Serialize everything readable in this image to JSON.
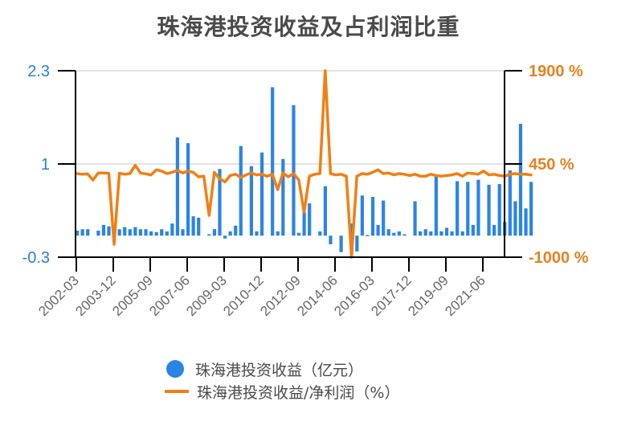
{
  "chart_data": {
    "type": "bar+line",
    "title": "珠海港投资收益及占利润比重",
    "xlabel": "",
    "ylabel_left": "",
    "ylabel_right": "",
    "left_axis": {
      "ticks": [
        "2.3",
        "1",
        "-0.3"
      ],
      "range": [
        -0.3,
        2.3
      ],
      "color": "#2a7fd9"
    },
    "right_axis": {
      "ticks": [
        "1900 %",
        "450 %",
        "-1000 %"
      ],
      "range": [
        -1000,
        1900
      ],
      "color": "#e9801f"
    },
    "x_tick_labels": [
      "2002-03",
      "2003-12",
      "2005-09",
      "2007-06",
      "2009-03",
      "2010-12",
      "2012-09",
      "2014-06",
      "2016-03",
      "2017-12",
      "2019-09",
      "2021-06"
    ],
    "grid": true,
    "legend_position": "bottom",
    "series": [
      {
        "name": "珠海港投资收益（亿元）",
        "type": "bar",
        "axis": "left",
        "color": "#2b84e4",
        "values": [
          0.07,
          0.09,
          0.09,
          0.0,
          0.07,
          0.15,
          0.13,
          0.0,
          0.09,
          0.12,
          0.09,
          0.12,
          0.09,
          0.09,
          0.06,
          0.05,
          0.09,
          0.06,
          0.17,
          1.37,
          0.09,
          1.29,
          0.27,
          0.25,
          0.0,
          0.02,
          0.09,
          0.93,
          -0.04,
          0.06,
          0.14,
          1.25,
          0.0,
          0.97,
          0.06,
          1.16,
          0.0,
          2.07,
          0.06,
          1.07,
          0.0,
          1.82,
          0.04,
          0.33,
          0.45,
          0.0,
          0.06,
          0.69,
          -0.12,
          0.0,
          -0.23,
          0.0,
          0.17,
          -0.22,
          0.56,
          0.01,
          0.54,
          0.15,
          0.49,
          0.09,
          0.04,
          0.06,
          0.02,
          0.0,
          0.48,
          0.06,
          0.09,
          0.06,
          0.85,
          0.06,
          0.11,
          0.06,
          0.76,
          0.06,
          0.75,
          0.15,
          0.78,
          0.0,
          0.71,
          0.15,
          0.72,
          0.19,
          0.91,
          0.48,
          1.56,
          0.38,
          0.75
        ]
      },
      {
        "name": "珠海港投资收益/净利润（%）",
        "type": "line",
        "axis": "right",
        "color": "#f17f13",
        "values": [
          300,
          290,
          295,
          200,
          310,
          310,
          305,
          -800,
          305,
          290,
          300,
          430,
          310,
          295,
          280,
          360,
          340,
          300,
          320,
          350,
          310,
          340,
          320,
          250,
          260,
          -350,
          320,
          220,
          170,
          270,
          290,
          240,
          280,
          310,
          280,
          290,
          260,
          290,
          50,
          310,
          250,
          300,
          200,
          -300,
          260,
          290,
          300,
          1900,
          300,
          280,
          290,
          260,
          -1000,
          260,
          300,
          290,
          320,
          360,
          300,
          310,
          280,
          300,
          290,
          270,
          290,
          260,
          260,
          290,
          270,
          260,
          270,
          280,
          300,
          260,
          310,
          300,
          290,
          340,
          280,
          290,
          270,
          260,
          290,
          300,
          290,
          290,
          280
        ]
      }
    ]
  },
  "legend": {
    "items": [
      {
        "label": "珠海港投资收益（亿元）",
        "marker": "circle",
        "color": "#2b84e4"
      },
      {
        "label": "珠海港投资收益/净利润（%）",
        "marker": "line",
        "color": "#f17f13"
      }
    ]
  }
}
